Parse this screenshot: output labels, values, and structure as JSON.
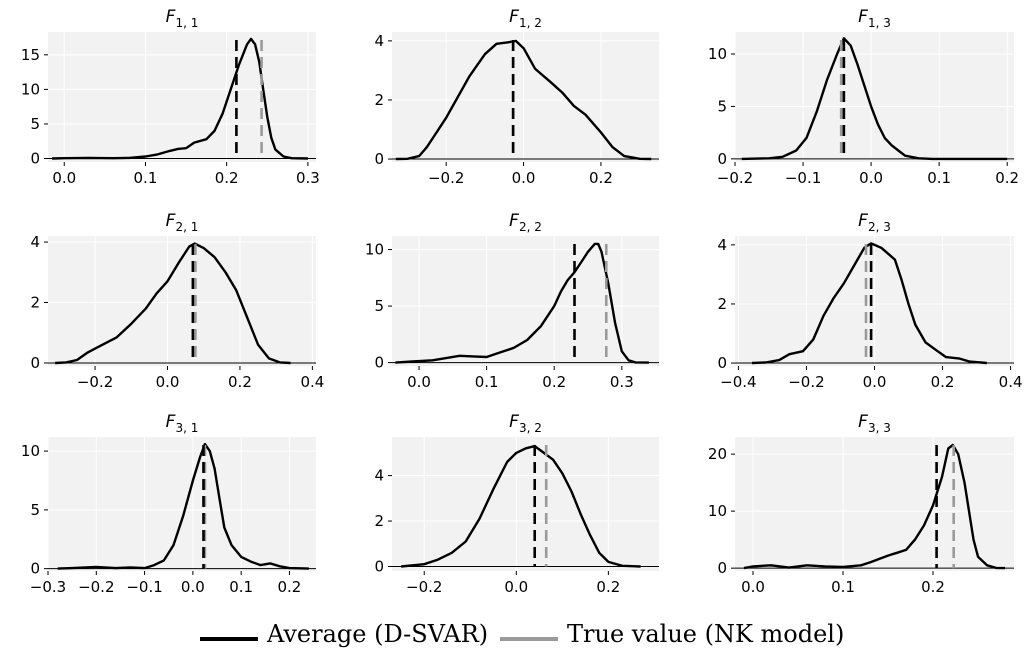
{
  "colors": {
    "panel_bg": "#f2f2f2",
    "grid": "#ffffff",
    "average": "#000000",
    "true_value": "#9a9a9a"
  },
  "legend": {
    "average_label": "Average (D-SVAR)",
    "true_label": "True value (NK model)"
  },
  "chart_data": [
    {
      "type": "area",
      "title": "F1,1",
      "title_main": "F",
      "title_sub": "1, 1",
      "xlim": [
        -0.02,
        0.31
      ],
      "ylim": [
        -0.5,
        18.3
      ],
      "xticks": [
        0.0,
        0.1,
        0.2,
        0.3
      ],
      "xtick_labels": [
        "0.0",
        "0.1",
        "0.2",
        "0.3"
      ],
      "yticks": [
        0,
        5,
        10,
        15
      ],
      "ytick_labels": [
        "0",
        "5",
        "10",
        "15"
      ],
      "density": [
        [
          -0.015,
          0
        ],
        [
          0.0,
          0.05
        ],
        [
          0.03,
          0.1
        ],
        [
          0.06,
          0.05
        ],
        [
          0.08,
          0.1
        ],
        [
          0.1,
          0.3
        ],
        [
          0.115,
          0.6
        ],
        [
          0.13,
          1.1
        ],
        [
          0.14,
          1.4
        ],
        [
          0.15,
          1.5
        ],
        [
          0.16,
          2.3
        ],
        [
          0.175,
          2.8
        ],
        [
          0.185,
          4
        ],
        [
          0.195,
          6.5
        ],
        [
          0.205,
          10
        ],
        [
          0.215,
          13.5
        ],
        [
          0.225,
          16.5
        ],
        [
          0.23,
          17.3
        ],
        [
          0.235,
          16.5
        ],
        [
          0.24,
          14
        ],
        [
          0.245,
          10
        ],
        [
          0.25,
          6
        ],
        [
          0.255,
          3
        ],
        [
          0.26,
          1.3
        ],
        [
          0.27,
          0.3
        ],
        [
          0.28,
          0.05
        ],
        [
          0.3,
          0
        ]
      ],
      "average": 0.212,
      "true_value": 0.243
    },
    {
      "type": "area",
      "title": "F1,2",
      "title_main": "F",
      "title_sub": "1, 2",
      "xlim": [
        -0.34,
        0.35
      ],
      "ylim": [
        -0.1,
        4.3
      ],
      "xticks": [
        -0.2,
        0.0,
        0.2
      ],
      "xtick_labels": [
        "−0.2",
        "0.0",
        "0.2"
      ],
      "yticks": [
        0,
        2,
        4
      ],
      "ytick_labels": [
        "0",
        "2",
        "4"
      ],
      "density": [
        [
          -0.33,
          0
        ],
        [
          -0.3,
          0.01
        ],
        [
          -0.27,
          0.1
        ],
        [
          -0.25,
          0.4
        ],
        [
          -0.23,
          0.8
        ],
        [
          -0.2,
          1.4
        ],
        [
          -0.17,
          2.1
        ],
        [
          -0.14,
          2.8
        ],
        [
          -0.1,
          3.55
        ],
        [
          -0.07,
          3.9
        ],
        [
          -0.04,
          3.95
        ],
        [
          -0.02,
          4.0
        ],
        [
          0.0,
          3.75
        ],
        [
          0.03,
          3.05
        ],
        [
          0.07,
          2.6
        ],
        [
          0.1,
          2.25
        ],
        [
          0.13,
          1.8
        ],
        [
          0.16,
          1.5
        ],
        [
          0.2,
          0.9
        ],
        [
          0.23,
          0.4
        ],
        [
          0.26,
          0.1
        ],
        [
          0.3,
          0.01
        ],
        [
          0.33,
          0
        ]
      ],
      "average": -0.027,
      "true_value": -0.027
    },
    {
      "type": "area",
      "title": "F1,3",
      "title_main": "F",
      "title_sub": "1, 3",
      "xlim": [
        -0.2,
        0.21
      ],
      "ylim": [
        -0.3,
        12.1
      ],
      "xticks": [
        -0.2,
        -0.1,
        0.0,
        0.1,
        0.2
      ],
      "xtick_labels": [
        "−0.2",
        "−0.1",
        "0.0",
        "0.1",
        "0.2"
      ],
      "yticks": [
        0,
        5,
        10
      ],
      "ytick_labels": [
        "0",
        "5",
        "10"
      ],
      "density": [
        [
          -0.19,
          0
        ],
        [
          -0.15,
          0.05
        ],
        [
          -0.13,
          0.2
        ],
        [
          -0.11,
          0.8
        ],
        [
          -0.095,
          2
        ],
        [
          -0.08,
          4.5
        ],
        [
          -0.065,
          7.5
        ],
        [
          -0.05,
          10
        ],
        [
          -0.04,
          11.5
        ],
        [
          -0.03,
          10.8
        ],
        [
          -0.02,
          9
        ],
        [
          -0.01,
          7
        ],
        [
          0.0,
          5
        ],
        [
          0.01,
          3.3
        ],
        [
          0.02,
          2
        ],
        [
          0.03,
          1.3
        ],
        [
          0.04,
          0.8
        ],
        [
          0.05,
          0.3
        ],
        [
          0.07,
          0.05
        ],
        [
          0.09,
          0
        ],
        [
          0.2,
          0
        ]
      ],
      "average": -0.04,
      "true_value": -0.044
    },
    {
      "type": "area",
      "title": "F2,1",
      "title_main": "F",
      "title_sub": "2, 1",
      "xlim": [
        -0.33,
        0.41
      ],
      "ylim": [
        -0.1,
        4.2
      ],
      "xticks": [
        -0.2,
        0.0,
        0.2,
        0.4
      ],
      "xtick_labels": [
        "−0.2",
        "0.0",
        "0.2",
        "0.4"
      ],
      "yticks": [
        0,
        2,
        4
      ],
      "ytick_labels": [
        "0",
        "2",
        "4"
      ],
      "density": [
        [
          -0.31,
          0
        ],
        [
          -0.28,
          0.02
        ],
        [
          -0.25,
          0.1
        ],
        [
          -0.22,
          0.35
        ],
        [
          -0.18,
          0.6
        ],
        [
          -0.14,
          0.85
        ],
        [
          -0.1,
          1.3
        ],
        [
          -0.06,
          1.8
        ],
        [
          -0.03,
          2.3
        ],
        [
          0.0,
          2.7
        ],
        [
          0.03,
          3.3
        ],
        [
          0.06,
          3.85
        ],
        [
          0.075,
          3.95
        ],
        [
          0.1,
          3.8
        ],
        [
          0.13,
          3.5
        ],
        [
          0.16,
          3.0
        ],
        [
          0.19,
          2.4
        ],
        [
          0.22,
          1.5
        ],
        [
          0.25,
          0.6
        ],
        [
          0.28,
          0.15
        ],
        [
          0.31,
          0.02
        ],
        [
          0.34,
          0
        ]
      ],
      "average": 0.07,
      "true_value": 0.077
    },
    {
      "type": "area",
      "title": "F2,2",
      "title_main": "F",
      "title_sub": "2, 2",
      "xlim": [
        -0.04,
        0.355
      ],
      "ylim": [
        -0.3,
        11.2
      ],
      "xticks": [
        0.0,
        0.1,
        0.2,
        0.3
      ],
      "xtick_labels": [
        "0.0",
        "0.1",
        "0.2",
        "0.3"
      ],
      "yticks": [
        0,
        5,
        10
      ],
      "ytick_labels": [
        "0",
        "5",
        "10"
      ],
      "density": [
        [
          -0.035,
          0
        ],
        [
          -0.01,
          0.1
        ],
        [
          0.02,
          0.2
        ],
        [
          0.04,
          0.4
        ],
        [
          0.06,
          0.6
        ],
        [
          0.08,
          0.55
        ],
        [
          0.1,
          0.5
        ],
        [
          0.12,
          0.9
        ],
        [
          0.14,
          1.3
        ],
        [
          0.16,
          2
        ],
        [
          0.18,
          3.2
        ],
        [
          0.2,
          5
        ],
        [
          0.21,
          6.3
        ],
        [
          0.22,
          7.3
        ],
        [
          0.23,
          8
        ],
        [
          0.24,
          8.9
        ],
        [
          0.25,
          9.8
        ],
        [
          0.26,
          10.5
        ],
        [
          0.265,
          10.5
        ],
        [
          0.27,
          9.8
        ],
        [
          0.28,
          7
        ],
        [
          0.29,
          3.5
        ],
        [
          0.3,
          1
        ],
        [
          0.31,
          0.2
        ],
        [
          0.32,
          0.02
        ],
        [
          0.34,
          0
        ]
      ],
      "average": 0.23,
      "true_value": 0.277
    },
    {
      "type": "area",
      "title": "F2,3",
      "title_main": "F",
      "title_sub": "2, 3",
      "xlim": [
        -0.41,
        0.41
      ],
      "ylim": [
        -0.1,
        4.3
      ],
      "xticks": [
        -0.4,
        -0.2,
        0.0,
        0.2,
        0.4
      ],
      "xtick_labels": [
        "−0.4",
        "−0.2",
        "0.0",
        "0.2",
        "0.4"
      ],
      "yticks": [
        0,
        2,
        4
      ],
      "ytick_labels": [
        "0",
        "2",
        "4"
      ],
      "density": [
        [
          -0.36,
          0
        ],
        [
          -0.32,
          0.02
        ],
        [
          -0.28,
          0.1
        ],
        [
          -0.25,
          0.3
        ],
        [
          -0.21,
          0.4
        ],
        [
          -0.18,
          0.8
        ],
        [
          -0.15,
          1.6
        ],
        [
          -0.12,
          2.2
        ],
        [
          -0.09,
          2.7
        ],
        [
          -0.06,
          3.3
        ],
        [
          -0.03,
          3.9
        ],
        [
          -0.01,
          4.05
        ],
        [
          0.02,
          3.9
        ],
        [
          0.04,
          3.7
        ],
        [
          0.06,
          3.5
        ],
        [
          0.08,
          2.8
        ],
        [
          0.1,
          2
        ],
        [
          0.12,
          1.3
        ],
        [
          0.15,
          0.7
        ],
        [
          0.18,
          0.45
        ],
        [
          0.21,
          0.2
        ],
        [
          0.25,
          0.15
        ],
        [
          0.28,
          0.05
        ],
        [
          0.33,
          0
        ]
      ],
      "average": -0.01,
      "true_value": -0.025
    },
    {
      "type": "area",
      "title": "F3,1",
      "title_main": "F",
      "title_sub": "3, 1",
      "xlim": [
        -0.3,
        0.255
      ],
      "ylim": [
        -0.2,
        11.2
      ],
      "xticks": [
        -0.3,
        -0.2,
        -0.1,
        0.0,
        0.1,
        0.2
      ],
      "xtick_labels": [
        "−0.3",
        "−0.2",
        "−0.1",
        "0.0",
        "0.1",
        "0.2"
      ],
      "yticks": [
        0,
        5,
        10
      ],
      "ytick_labels": [
        "0",
        "5",
        "10"
      ],
      "density": [
        [
          -0.28,
          0
        ],
        [
          -0.25,
          0.05
        ],
        [
          -0.2,
          0.15
        ],
        [
          -0.16,
          0.05
        ],
        [
          -0.13,
          0.1
        ],
        [
          -0.1,
          0.05
        ],
        [
          -0.08,
          0.3
        ],
        [
          -0.06,
          0.7
        ],
        [
          -0.04,
          2
        ],
        [
          -0.02,
          4.5
        ],
        [
          0.0,
          7.5
        ],
        [
          0.015,
          9.5
        ],
        [
          0.025,
          10.6
        ],
        [
          0.035,
          10
        ],
        [
          0.045,
          8.5
        ],
        [
          0.055,
          6
        ],
        [
          0.065,
          3.5
        ],
        [
          0.08,
          2
        ],
        [
          0.1,
          1
        ],
        [
          0.12,
          0.6
        ],
        [
          0.14,
          0.3
        ],
        [
          0.16,
          0.45
        ],
        [
          0.18,
          0.2
        ],
        [
          0.2,
          0.05
        ],
        [
          0.24,
          0
        ]
      ],
      "average": 0.022,
      "true_value": 0.025
    },
    {
      "type": "area",
      "title": "F3,2",
      "title_main": "F",
      "title_sub": "3, 2",
      "xlim": [
        -0.27,
        0.31
      ],
      "ylim": [
        -0.2,
        5.7
      ],
      "xticks": [
        -0.2,
        0.0,
        0.2
      ],
      "xtick_labels": [
        "−0.2",
        "0.0",
        "0.2"
      ],
      "yticks": [
        0,
        2,
        4
      ],
      "ytick_labels": [
        "0",
        "2",
        "4"
      ],
      "density": [
        [
          -0.25,
          0
        ],
        [
          -0.2,
          0.1
        ],
        [
          -0.17,
          0.3
        ],
        [
          -0.14,
          0.6
        ],
        [
          -0.11,
          1.1
        ],
        [
          -0.08,
          2.1
        ],
        [
          -0.05,
          3.4
        ],
        [
          -0.02,
          4.6
        ],
        [
          0.0,
          5.0
        ],
        [
          0.02,
          5.2
        ],
        [
          0.04,
          5.3
        ],
        [
          0.06,
          5.0
        ],
        [
          0.08,
          4.7
        ],
        [
          0.1,
          4.1
        ],
        [
          0.12,
          3.3
        ],
        [
          0.14,
          2.3
        ],
        [
          0.16,
          1.4
        ],
        [
          0.18,
          0.6
        ],
        [
          0.2,
          0.2
        ],
        [
          0.23,
          0.03
        ],
        [
          0.27,
          0
        ]
      ],
      "average": 0.04,
      "true_value": 0.065
    },
    {
      "type": "area",
      "title": "F3,3",
      "title_main": "F",
      "title_sub": "3, 3",
      "xlim": [
        -0.02,
        0.29
      ],
      "ylim": [
        -0.5,
        23
      ],
      "xticks": [
        0.0,
        0.1,
        0.2
      ],
      "xtick_labels": [
        "0.0",
        "0.1",
        "0.2"
      ],
      "yticks": [
        0,
        10,
        20
      ],
      "ytick_labels": [
        "0",
        "10",
        "20"
      ],
      "density": [
        [
          -0.01,
          0
        ],
        [
          0.0,
          0.3
        ],
        [
          0.02,
          0.5
        ],
        [
          0.04,
          0.1
        ],
        [
          0.06,
          0.5
        ],
        [
          0.08,
          0.3
        ],
        [
          0.1,
          0.2
        ],
        [
          0.12,
          0.5
        ],
        [
          0.13,
          1
        ],
        [
          0.14,
          1.6
        ],
        [
          0.15,
          2.2
        ],
        [
          0.16,
          2.7
        ],
        [
          0.17,
          3.2
        ],
        [
          0.18,
          5
        ],
        [
          0.19,
          7.5
        ],
        [
          0.2,
          11
        ],
        [
          0.21,
          16
        ],
        [
          0.217,
          21
        ],
        [
          0.222,
          21.6
        ],
        [
          0.228,
          20
        ],
        [
          0.235,
          15
        ],
        [
          0.24,
          10
        ],
        [
          0.245,
          5
        ],
        [
          0.25,
          2
        ],
        [
          0.26,
          0.5
        ],
        [
          0.27,
          0.05
        ],
        [
          0.28,
          0
        ]
      ],
      "average": 0.204,
      "true_value": 0.223
    }
  ]
}
